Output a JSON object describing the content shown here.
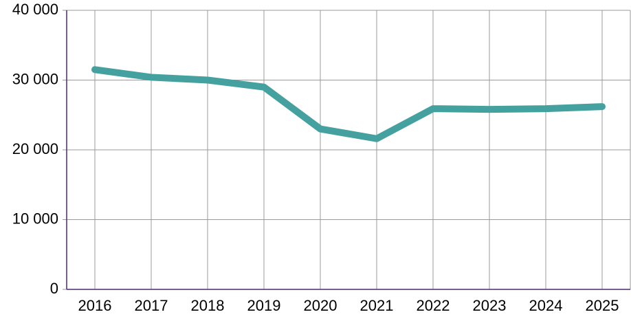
{
  "chart_data": {
    "type": "line",
    "categories": [
      "2016",
      "2017",
      "2018",
      "2019",
      "2020",
      "2021",
      "2022",
      "2023",
      "2024",
      "2025"
    ],
    "series": [
      {
        "color": "#45a0a0",
        "values": [
          31500,
          30400,
          30000,
          29000,
          23000,
          21600,
          25900,
          25800,
          25900,
          26200
        ]
      }
    ],
    "ylim": [
      0,
      40000
    ],
    "yticks": [
      0,
      {
        "value": 10000,
        "label": "10 000"
      },
      {
        "value": 20000,
        "label": "20 000"
      },
      {
        "value": 30000,
        "label": "30 000"
      },
      {
        "value": 40000,
        "label": "40 000"
      }
    ],
    "grid": true
  }
}
